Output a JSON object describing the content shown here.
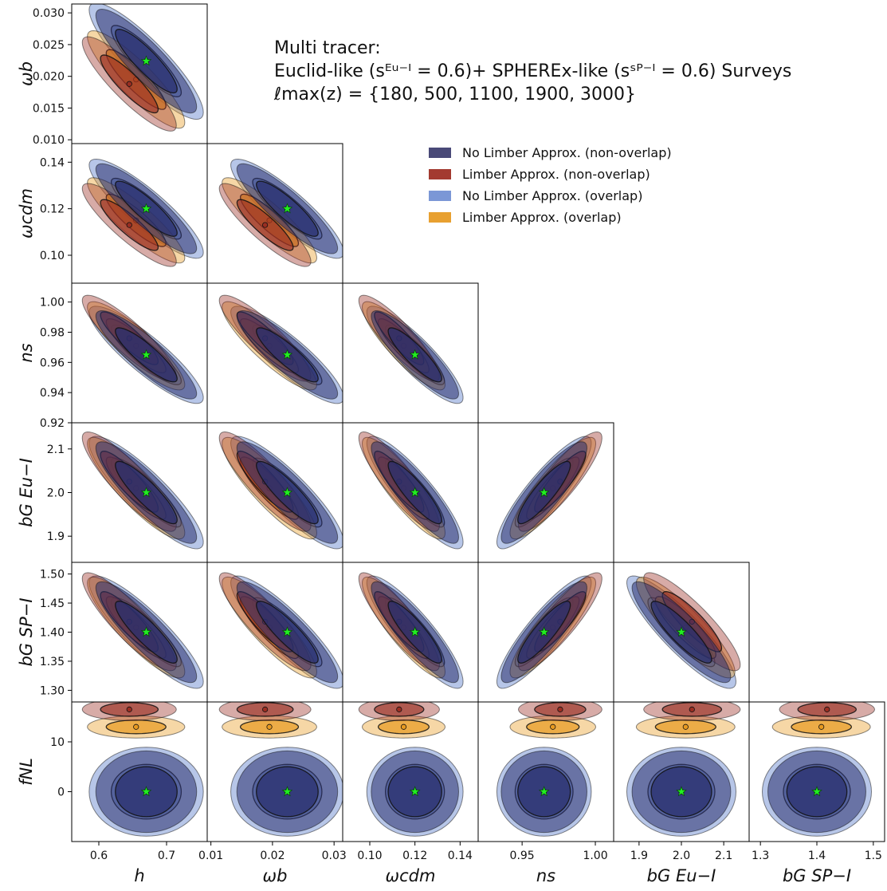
{
  "title": {
    "line1": "Multi tracer:",
    "line2": "Euclid-like (sᴱᵘ⁻ᴵ = 0.6)+ SPHEREx-like (sˢᴾ⁻ᴵ = 0.6) Surveys",
    "line3": "ℓmax(z) = {180, 500, 1100, 1900, 3000}"
  },
  "legend": [
    {
      "label": "No Limber Approx. (non-overlap)",
      "color": "#4a4a78"
    },
    {
      "label": "Limber Approx. (non-overlap)",
      "color": "#a33a30"
    },
    {
      "label": "No Limber Approx. (overlap)",
      "color": "#7b97d6"
    },
    {
      "label": "Limber Approx. (overlap)",
      "color": "#e8a030"
    }
  ],
  "chart_data": {
    "type": "scatter",
    "subtype": "fisher-corner-plot",
    "parameters": [
      {
        "name": "h",
        "label": "h",
        "fiducial": 0.67,
        "range": [
          0.56,
          0.76
        ],
        "ticks": [
          0.6,
          0.7
        ],
        "tick_labels": [
          "0.6",
          "0.7"
        ]
      },
      {
        "name": "omega_b",
        "label": "ωb",
        "fiducial": 0.0224,
        "range": [
          0.0094,
          0.0314
        ],
        "ticks": [
          0.01,
          0.02,
          0.03
        ],
        "tick_labels": [
          "0.01",
          "0.02",
          "0.03"
        ],
        "y_ticks": [
          0.01,
          0.015,
          0.02,
          0.025,
          0.03
        ],
        "y_tick_labels": [
          "0.010",
          "0.015",
          "0.020",
          "0.025",
          "0.030"
        ]
      },
      {
        "name": "omega_cdm",
        "label": "ωcdm",
        "fiducial": 0.12,
        "range": [
          0.088,
          0.148
        ],
        "ticks": [
          0.1,
          0.12,
          0.14
        ],
        "tick_labels": [
          "0.10",
          "0.12",
          "0.14"
        ]
      },
      {
        "name": "n_s",
        "label": "ns",
        "fiducial": 0.965,
        "range": [
          0.92,
          1.0125
        ],
        "ticks": [
          0.95,
          1.0
        ],
        "tick_labels": [
          "0.95",
          "1.00"
        ],
        "y_ticks": [
          0.92,
          0.94,
          0.96,
          0.98,
          1.0
        ],
        "y_tick_labels": [
          "0.92",
          "0.94",
          "0.96",
          "0.98",
          "1.00"
        ]
      },
      {
        "name": "b_G_Eu",
        "label": "bG Eu−I",
        "fiducial": 2.0,
        "range": [
          1.84,
          2.16
        ],
        "ticks": [
          1.9,
          2.0,
          2.1
        ],
        "tick_labels": [
          "1.9",
          "2.0",
          "2.1"
        ]
      },
      {
        "name": "b_G_SP",
        "label": "bG SP−I",
        "fiducial": 1.4,
        "range": [
          1.28,
          1.52
        ],
        "ticks": [
          1.3,
          1.4,
          1.5
        ],
        "tick_labels": [
          "1.3",
          "1.4",
          "1.5"
        ],
        "y_ticks": [
          1.3,
          1.35,
          1.4,
          1.45,
          1.5
        ],
        "y_tick_labels": [
          "1.30",
          "1.35",
          "1.40",
          "1.45",
          "1.50"
        ]
      },
      {
        "name": "f_NL",
        "label": "fNL",
        "fiducial": 0,
        "range": [
          -10,
          18
        ],
        "ticks": [
          0,
          10
        ],
        "tick_labels": [
          "0",
          "10"
        ]
      }
    ],
    "series": [
      {
        "name": "No Limber Approx. (non-overlap)",
        "color": "#2a2f6e",
        "center": [
          0.67,
          0.0224,
          0.12,
          0.965,
          2.0,
          1.4,
          0
        ],
        "sigma": [
          0.03,
          0.0033,
          0.0078,
          0.0118,
          0.047,
          0.035,
          3.3
        ],
        "rho": -0.88
      },
      {
        "name": "Limber Approx. (non-overlap)",
        "color": "#9a2e22",
        "center": [
          0.645,
          0.0188,
          0.113,
          0.976,
          2.025,
          1.418,
          16.5
        ],
        "sigma": [
          0.028,
          0.003,
          0.0072,
          0.0115,
          0.046,
          0.034,
          0.9
        ],
        "rho": -0.88
      },
      {
        "name": "No Limber Approx. (overlap)",
        "color": "#7b97d6",
        "center": [
          0.67,
          0.0224,
          0.12,
          0.965,
          2.0,
          1.4,
          0
        ],
        "sigma": [
          0.034,
          0.0037,
          0.0086,
          0.013,
          0.052,
          0.039,
          3.6
        ],
        "rho": -0.88
      },
      {
        "name": "Limber Approx. (overlap)",
        "color": "#e89a20",
        "center": [
          0.655,
          0.0195,
          0.115,
          0.971,
          2.01,
          1.408,
          13.0
        ],
        "sigma": [
          0.029,
          0.0031,
          0.0074,
          0.0118,
          0.047,
          0.035,
          0.9
        ],
        "rho": -0.88
      }
    ],
    "fiducial_marker": "green star",
    "contours": [
      "1-sigma",
      "2-sigma"
    ]
  }
}
